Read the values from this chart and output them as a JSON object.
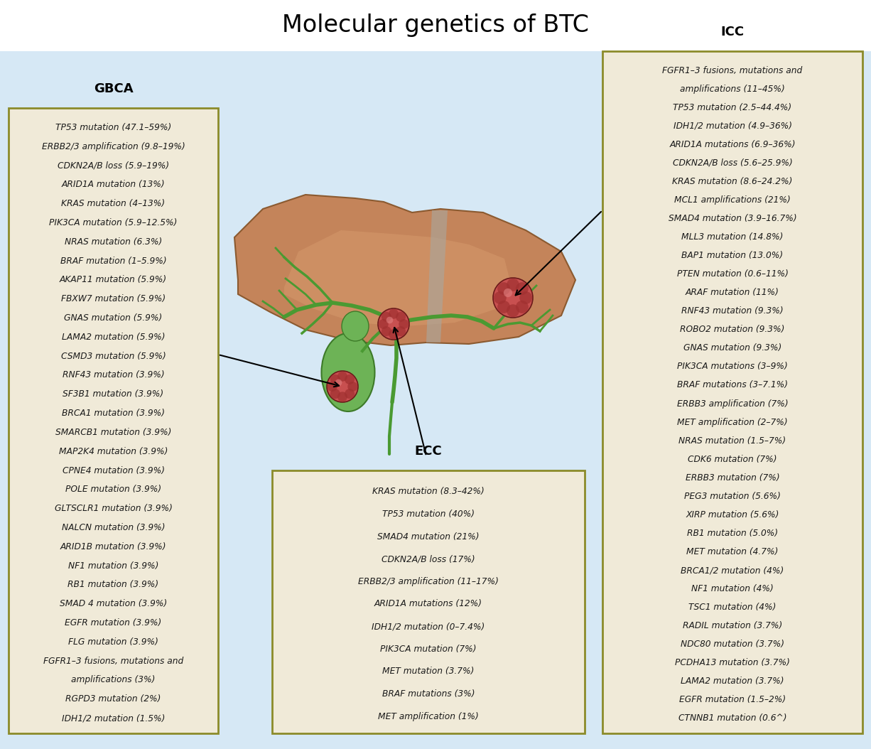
{
  "title": "Molecular genetics of BTC",
  "title_fontsize": 24,
  "background_color": "#d6e8f5",
  "top_background": "#ffffff",
  "box_face_color": "#f0ead8",
  "box_edge_color": "#8b8b2a",
  "box_edge_width": 2.0,
  "text_color": "#1a1a1a",
  "label_fontsize": 13,
  "item_fontsize": 8.8,
  "gbca_label": "GBCA",
  "gbca_items": [
    "TP53 mutation (47.1–59%)",
    "ERBB2/3 amplification (9.8–19%)",
    "CDKN2A/B loss (5.9–19%)",
    "ARID1A mutation (13%)",
    "KRAS mutation (4–13%)",
    "PIK3CA mutation (5.9–12.5%)",
    "NRAS mutation (6.3%)",
    "BRAF mutation (1–5.9%)",
    "AKAP11 mutation (5.9%)",
    "FBXW7 mutation (5.9%)",
    "GNAS mutation (5.9%)",
    "LAMA2 mutation (5.9%)",
    "CSMD3 mutation (5.9%)",
    "RNF43 mutation (3.9%)",
    "SF3B1 mutation (3.9%)",
    "BRCA1 mutation (3.9%)",
    "SMARCB1 mutation (3.9%)",
    "MAP2K4 mutation (3.9%)",
    "CPNE4 mutation (3.9%)",
    "POLE mutation (3.9%)",
    "GLTSCLR1 mutation (3.9%)",
    "NALCN mutation (3.9%)",
    "ARID1B mutation (3.9%)",
    "NF1 mutation (3.9%)",
    "RB1 mutation (3.9%)",
    "SMAD 4 mutation (3.9%)",
    "EGFR mutation (3.9%)",
    "FLG mutation (3.9%)",
    "FGFR1–3 fusions, mutations and",
    "amplifications (3%)",
    "RGPD3 mutation (2%)",
    "IDH1/2 mutation (1.5%)"
  ],
  "icc_label": "ICC",
  "icc_items": [
    "FGFR1–3 fusions, mutations and",
    "amplifications (11–45%)",
    "TP53 mutation (2.5–44.4%)",
    "IDH1/2 mutation (4.9–36%)",
    "ARID1A mutations (6.9–36%)",
    "CDKN2A/B loss (5.6–25.9%)",
    "KRAS mutation (8.6–24.2%)",
    "MCL1 amplifications (21%)",
    "SMAD4 mutation (3.9–16.7%)",
    "MLL3 mutation (14.8%)",
    "BAP1 mutation (13.0%)",
    "PTEN mutation (0.6–11%)",
    "ARAF mutation (11%)",
    "RNF43 mutation (9.3%)",
    "ROBO2 mutation (9.3%)",
    "GNAS mutation (9.3%)",
    "PIK3CA mutations (3–9%)",
    "BRAF mutations (3–7.1%)",
    "ERBB3 amplification (7%)",
    "MET amplification (2–7%)",
    "NRAS mutation (1.5–7%)",
    "CDK6 mutation (7%)",
    "ERBB3 mutation (7%)",
    "PEG3 mutation (5.6%)",
    "XIRP mutation (5.6%)",
    "RB1 mutation (5.0%)",
    "MET mutation (4.7%)",
    "BRCA1/2 mutation (4%)",
    "NF1 mutation (4%)",
    "TSC1 mutation (4%)",
    "RADIL mutation (3.7%)",
    "NDC80 mutation (3.7%)",
    "PCDHA13 mutation (3.7%)",
    "LAMA2 mutation (3.7%)",
    "EGFR mutation (1.5–2%)",
    "CTNNB1 mutation (0.6^)"
  ],
  "ecc_label": "ECC",
  "ecc_items": [
    "KRAS mutation (8.3–42%)",
    "TP53 mutation (40%)",
    "SMAD4 mutation (21%)",
    "CDKN2A/B loss (17%)",
    "ERBB2/3 amplification (11–17%)",
    "ARID1A mutations (12%)",
    "IDH1/2 mutation (0–7.4%)",
    "PIK3CA mutation (7%)",
    "MET mutation (3.7%)",
    "BRAF mutations (3%)",
    "MET amplification (1%)"
  ]
}
